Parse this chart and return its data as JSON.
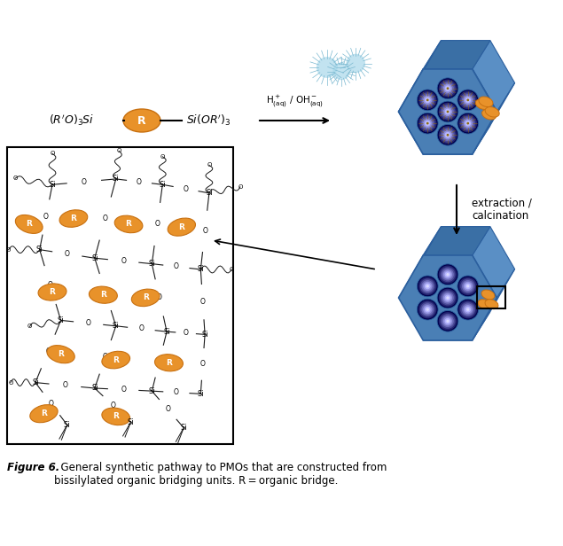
{
  "figure_label": "Figure 6.",
  "caption": "  General synthetic pathway to PMOs that are constructed from\nbissilylated organic bridging units. R = organic bridge.",
  "reactant_label": "(R’O)₃Si",
  "reactant_r": "R",
  "reactant_right": "Si(OR’)₃",
  "arrow_label_top": "H⁺",
  "arrow_label_aq1": "(aq)",
  "arrow_label_oh": " / OH⁻",
  "arrow_label_aq2": "(aq)",
  "extraction_label": "extraction /\ncalcination",
  "bg_color": "#ffffff",
  "orange_color": "#E8922A",
  "orange_dark": "#C87010",
  "blue_color": "#4A7FB5",
  "blue_dark": "#2B5F9E",
  "blue_light": "#A8D4F0",
  "network_line_color": "#1a1a1a",
  "box_color": "#000000"
}
